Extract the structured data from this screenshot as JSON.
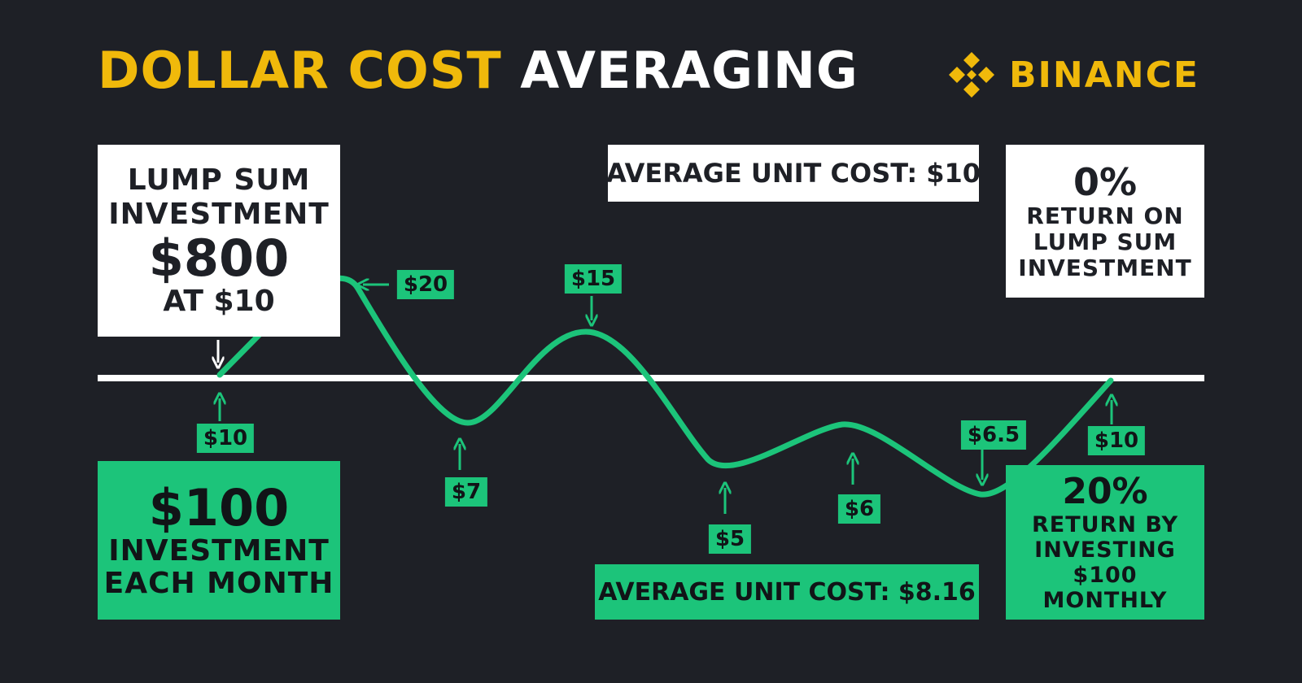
{
  "title": {
    "part1": "DOLLAR COST",
    "part2": "AVERAGING"
  },
  "brand": {
    "name": "BINANCE",
    "logo_icon": "binance-diamond-icon",
    "color": "#f0b90b"
  },
  "lump_sum_box": {
    "line1": "LUMP SUM",
    "line2": "INVESTMENT",
    "amount": "$800",
    "price": "AT $10"
  },
  "average_unit_cost_lump": "AVERAGE UNIT COST: $10",
  "lump_return_box": {
    "percent": "0%",
    "line1": "RETURN ON",
    "line2": "LUMP SUM",
    "line3": "INVESTMENT"
  },
  "monthly_box": {
    "amount": "$100",
    "line1": "INVESTMENT",
    "line2": "EACH MONTH"
  },
  "average_unit_cost_dca": "AVERAGE UNIT COST: $8.16",
  "dca_return_box": {
    "percent": "20%",
    "line1": "RETURN BY",
    "line2": "INVESTING",
    "line3": "$100",
    "line4": "MONTHLY"
  },
  "price_labels": [
    "$10",
    "$20",
    "$7",
    "$15",
    "$5",
    "$6",
    "$6.5",
    "$10"
  ],
  "colors": {
    "background": "#1e2026",
    "accent_green": "#1cc47a",
    "brand_yellow": "#f0b90b",
    "white": "#ffffff"
  }
}
